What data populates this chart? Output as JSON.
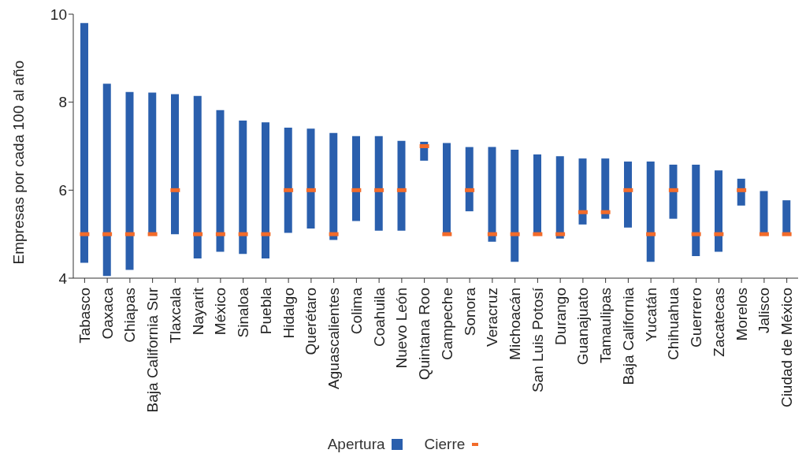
{
  "chart_data": {
    "type": "bar",
    "ylabel": "Empresas por cada 100 al año",
    "categories": [
      "Tabasco",
      "Oaxaca",
      "Chiapas",
      "Baja California Sur",
      "Tlaxcala",
      "Nayarit",
      "México",
      "Sinaloa",
      "Puebla",
      "Hidalgo",
      "Querétaro",
      "Aguascalientes",
      "Colima",
      "Coahuila",
      "Nuevo León",
      "Quintana Roo",
      "Campeche",
      "Sonora",
      "Veracruz",
      "Michoacán",
      "San Luis Potosí",
      "Durango",
      "Guanajuato",
      "Tamaulipas",
      "Baja California",
      "Yucatán",
      "Chihuahua",
      "Guerrero",
      "Zacatecas",
      "Morelos",
      "Jalisco",
      "Ciudad de México"
    ],
    "series": [
      {
        "name": "Apertura",
        "type": "bar",
        "color": "#2a5fad",
        "base": [
          4.35,
          4.05,
          4.19,
          5.0,
          5.0,
          4.45,
          4.6,
          4.55,
          4.45,
          5.03,
          5.13,
          4.87,
          5.3,
          5.08,
          5.08,
          6.67,
          4.97,
          5.52,
          4.83,
          4.37,
          5.0,
          4.9,
          5.22,
          5.35,
          5.15,
          4.37,
          5.35,
          4.5,
          4.6,
          5.65,
          5.0,
          5.0
        ],
        "values": [
          5.45,
          4.37,
          4.04,
          3.22,
          3.18,
          3.69,
          3.22,
          3.03,
          3.09,
          2.39,
          2.27,
          2.43,
          1.93,
          2.15,
          2.04,
          0.43,
          2.1,
          1.46,
          2.15,
          2.55,
          1.81,
          1.87,
          1.5,
          1.37,
          1.5,
          2.28,
          1.23,
          2.08,
          1.85,
          0.61,
          0.98,
          0.77
        ]
      },
      {
        "name": "Cierre",
        "type": "scatter",
        "color": "#f26b2a",
        "marker": "square",
        "values": [
          5,
          5,
          5,
          5,
          6,
          5,
          5,
          5,
          5,
          6,
          6,
          5,
          6,
          6,
          6,
          7,
          5,
          6,
          5,
          5,
          5,
          5,
          5.5,
          5.5,
          6,
          5,
          6,
          5,
          5,
          6,
          5,
          5
        ]
      }
    ],
    "ylim": [
      4,
      10
    ],
    "yticks": [
      4,
      6,
      8,
      10
    ],
    "grid": false,
    "legend": "bottom"
  }
}
